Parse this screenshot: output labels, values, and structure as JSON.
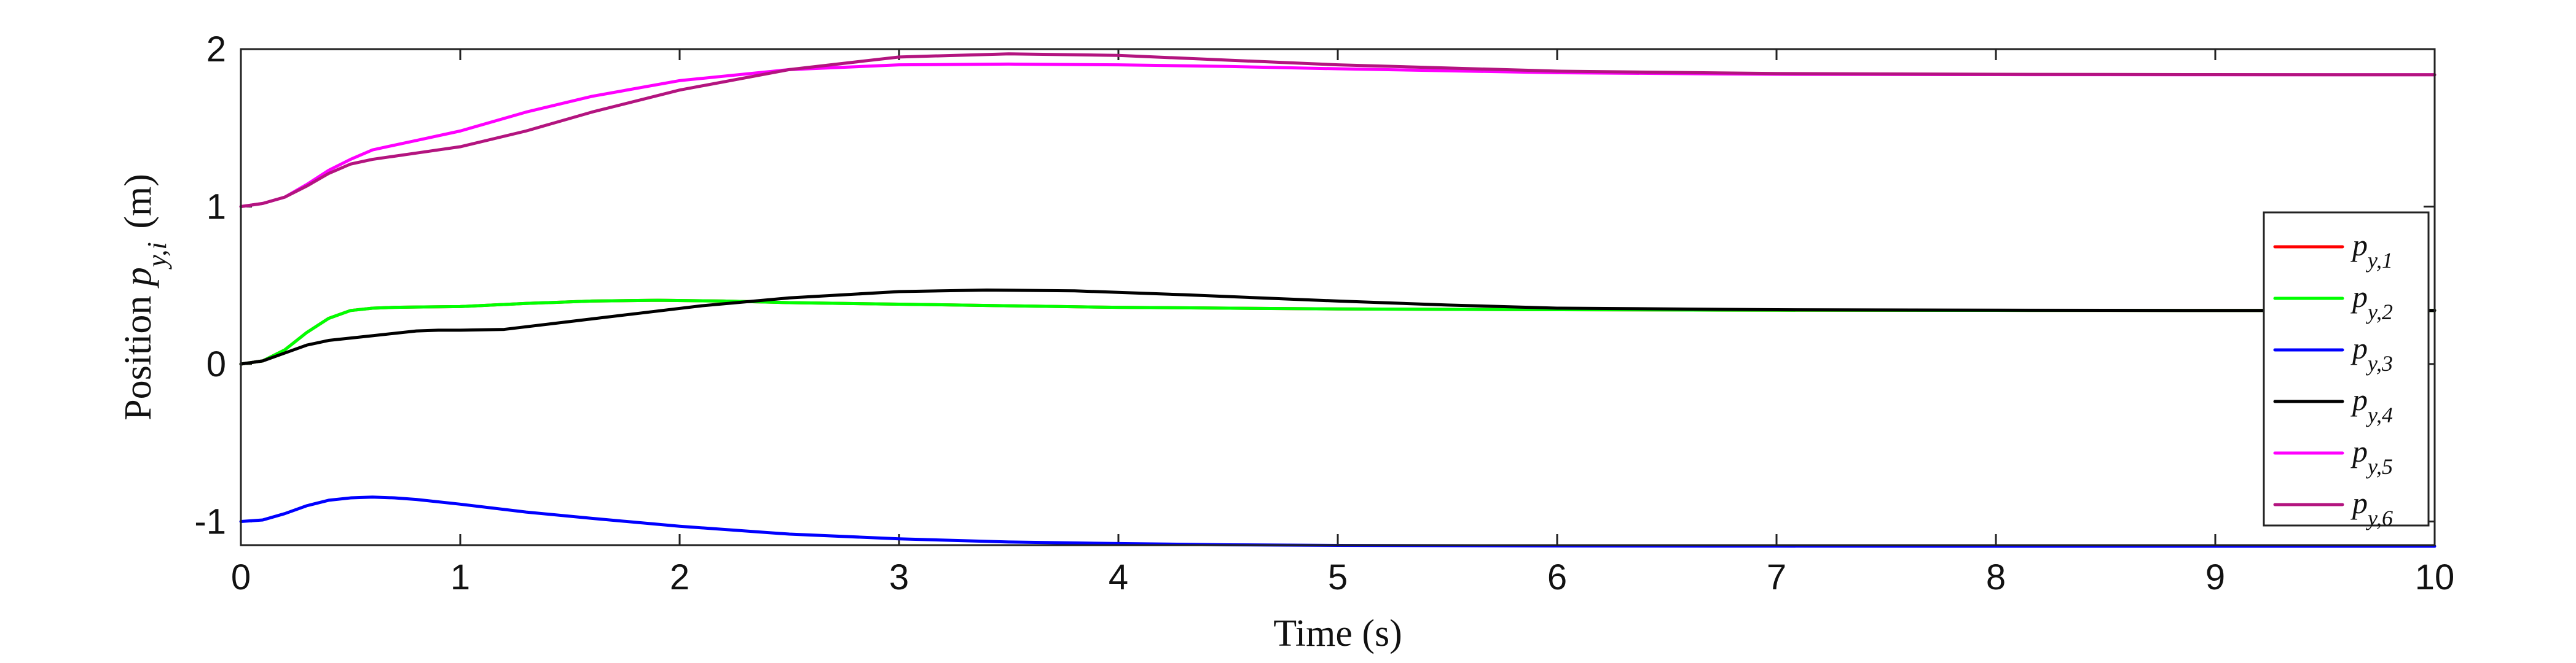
{
  "chart_data": {
    "type": "line",
    "xlabel": "Time (s)",
    "ylabel": "Position p_{y,i} (m)",
    "xlim": [
      0,
      10
    ],
    "ylim": [
      -1.15,
      2
    ],
    "xticks": [
      0,
      1,
      2,
      3,
      4,
      5,
      6,
      7,
      8,
      9,
      10
    ],
    "yticks": [
      -1,
      0,
      1,
      2
    ],
    "grid": false,
    "legend_position": "right",
    "series": [
      {
        "name": "p_{y,1}",
        "color": "#ff0000",
        "x": [
          0,
          0.1,
          0.2,
          0.3,
          0.4,
          0.5,
          0.6,
          0.7,
          0.8,
          1.0,
          1.3,
          1.6,
          1.9,
          2.2,
          2.5,
          3.0,
          3.5,
          4.0,
          5.0,
          6.0,
          7.0,
          8.0,
          9.0,
          10.0
        ],
        "y": [
          0,
          0.02,
          0.09,
          0.2,
          0.29,
          0.34,
          0.355,
          0.36,
          0.362,
          0.365,
          0.385,
          0.4,
          0.405,
          0.4,
          0.39,
          0.38,
          0.37,
          0.36,
          0.35,
          0.345,
          0.342,
          0.341,
          0.34,
          0.34
        ]
      },
      {
        "name": "p_{y,2}",
        "color": "#00ff00",
        "x": [
          0,
          0.1,
          0.2,
          0.3,
          0.4,
          0.5,
          0.6,
          0.7,
          0.8,
          1.0,
          1.3,
          1.6,
          1.9,
          2.2,
          2.5,
          3.0,
          3.5,
          4.0,
          5.0,
          6.0,
          7.0,
          8.0,
          9.0,
          10.0
        ],
        "y": [
          0,
          0.02,
          0.09,
          0.2,
          0.29,
          0.34,
          0.355,
          0.36,
          0.362,
          0.365,
          0.385,
          0.4,
          0.405,
          0.4,
          0.39,
          0.38,
          0.37,
          0.36,
          0.35,
          0.345,
          0.342,
          0.341,
          0.34,
          0.34
        ]
      },
      {
        "name": "p_{y,3}",
        "color": "#0000ff",
        "x": [
          0,
          0.1,
          0.2,
          0.3,
          0.4,
          0.5,
          0.6,
          0.7,
          0.8,
          1.0,
          1.3,
          1.6,
          2.0,
          2.5,
          3.0,
          3.5,
          4.0,
          4.5,
          5.0,
          6.0,
          7.0,
          8.0,
          9.0,
          10.0
        ],
        "y": [
          -1.0,
          -0.99,
          -0.95,
          -0.9,
          -0.865,
          -0.85,
          -0.845,
          -0.85,
          -0.86,
          -0.89,
          -0.94,
          -0.98,
          -1.03,
          -1.08,
          -1.11,
          -1.13,
          -1.14,
          -1.148,
          -1.152,
          -1.155,
          -1.156,
          -1.157,
          -1.157,
          -1.157
        ]
      },
      {
        "name": "p_{y,4}",
        "color": "#000000",
        "x": [
          0,
          0.1,
          0.2,
          0.3,
          0.4,
          0.6,
          0.8,
          0.9,
          1.0,
          1.2,
          1.5,
          1.8,
          2.1,
          2.5,
          3.0,
          3.4,
          3.8,
          4.3,
          5.0,
          5.5,
          6.0,
          7.0,
          8.0,
          9.0,
          10.0
        ],
        "y": [
          0,
          0.02,
          0.07,
          0.12,
          0.15,
          0.18,
          0.21,
          0.215,
          0.215,
          0.22,
          0.27,
          0.32,
          0.37,
          0.42,
          0.46,
          0.47,
          0.465,
          0.44,
          0.4,
          0.375,
          0.355,
          0.345,
          0.342,
          0.34,
          0.34
        ]
      },
      {
        "name": "p_{y,5}",
        "color": "#ff00ff",
        "x": [
          0,
          0.1,
          0.2,
          0.3,
          0.4,
          0.5,
          0.6,
          0.8,
          1.0,
          1.3,
          1.6,
          2.0,
          2.5,
          3.0,
          3.5,
          4.0,
          4.5,
          5.0,
          6.0,
          7.0,
          8.0,
          9.0,
          10.0
        ],
        "y": [
          1.0,
          1.02,
          1.06,
          1.14,
          1.23,
          1.3,
          1.36,
          1.42,
          1.48,
          1.6,
          1.7,
          1.8,
          1.87,
          1.9,
          1.905,
          1.9,
          1.89,
          1.875,
          1.85,
          1.84,
          1.838,
          1.837,
          1.837
        ]
      },
      {
        "name": "p_{y,6}",
        "color": "#b3147f",
        "x": [
          0,
          0.1,
          0.2,
          0.3,
          0.4,
          0.5,
          0.6,
          0.8,
          1.0,
          1.3,
          1.6,
          2.0,
          2.5,
          3.0,
          3.5,
          4.0,
          4.5,
          5.0,
          6.0,
          7.0,
          8.0,
          9.0,
          10.0
        ],
        "y": [
          1.0,
          1.02,
          1.06,
          1.13,
          1.21,
          1.27,
          1.3,
          1.34,
          1.38,
          1.48,
          1.6,
          1.74,
          1.87,
          1.95,
          1.97,
          1.96,
          1.93,
          1.9,
          1.86,
          1.845,
          1.84,
          1.838,
          1.837
        ]
      }
    ]
  }
}
